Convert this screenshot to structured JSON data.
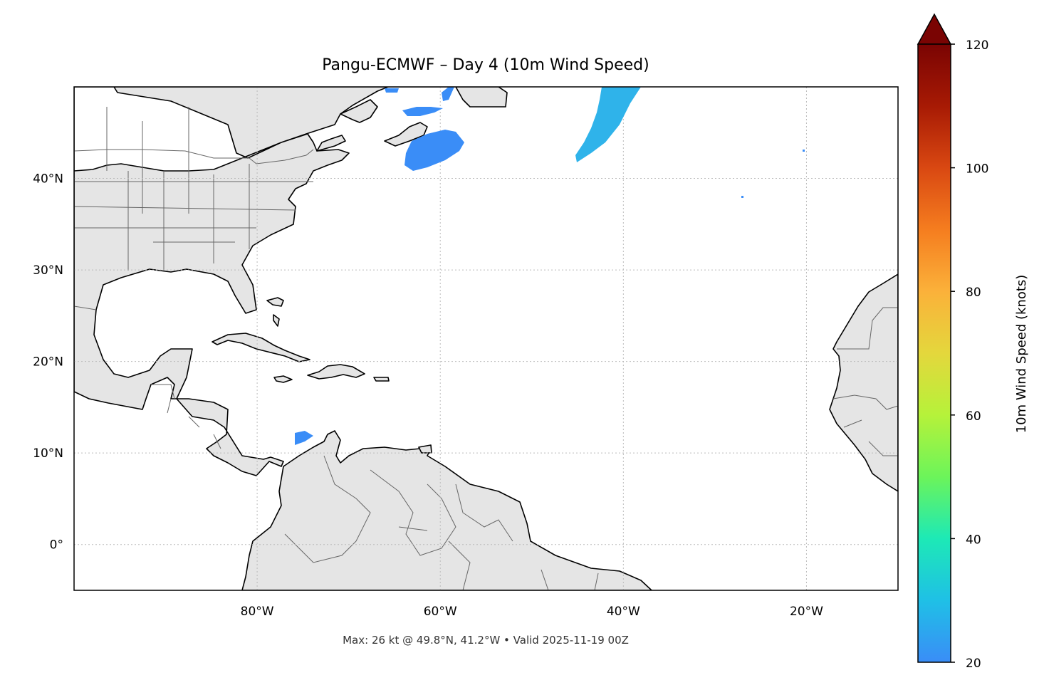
{
  "title": "Pangu-ECMWF – Day 4 (10m Wind Speed)",
  "footer": "Max: 26 kt @ 49.8°N, 41.2°W • Valid 2025-11-19 00Z",
  "map": {
    "lon_range": [
      -100,
      -10
    ],
    "lat_range": [
      -5,
      50
    ],
    "x_ticks": [
      {
        "value": -80,
        "label": "80°W"
      },
      {
        "value": -60,
        "label": "60°W"
      },
      {
        "value": -40,
        "label": "40°W"
      },
      {
        "value": -20,
        "label": "20°W"
      }
    ],
    "y_ticks": [
      {
        "value": 40,
        "label": "40°N"
      },
      {
        "value": 30,
        "label": "30°N"
      },
      {
        "value": 20,
        "label": "20°N"
      },
      {
        "value": 10,
        "label": "10°N"
      },
      {
        "value": 0,
        "label": "0°"
      }
    ],
    "grid": true,
    "land_color": "#e5e5e5",
    "coast_color": "#000000",
    "border_color": "#666666"
  },
  "colorbar": {
    "label": "10m Wind Speed (knots)",
    "range": [
      20,
      120
    ],
    "extend": "max",
    "ticks": [
      {
        "value": 20,
        "label": "20"
      },
      {
        "value": 40,
        "label": "40"
      },
      {
        "value": 60,
        "label": "60"
      },
      {
        "value": 80,
        "label": "80"
      },
      {
        "value": 100,
        "label": "100"
      },
      {
        "value": 120,
        "label": "120"
      }
    ],
    "colormap": [
      "#3a8df7",
      "#1fc0e6",
      "#1de9b6",
      "#6cf45a",
      "#b6f23a",
      "#e4d73c",
      "#fbb13a",
      "#f57d1f",
      "#d94812",
      "#a71a04",
      "#7a0403"
    ]
  },
  "wind_max": {
    "value": 26,
    "unit": "kt",
    "lat": 49.8,
    "lon": -41.2
  },
  "wind_patches": [
    {
      "region": "mid-Atlantic jet",
      "color": "#2fb3ea"
    },
    {
      "region": "Newfoundland",
      "color": "#3a8df7"
    },
    {
      "region": "Gulf of St. Lawrence",
      "color": "#3a8df7"
    },
    {
      "region": "Venezuela coast",
      "color": "#3a8df7"
    }
  ]
}
